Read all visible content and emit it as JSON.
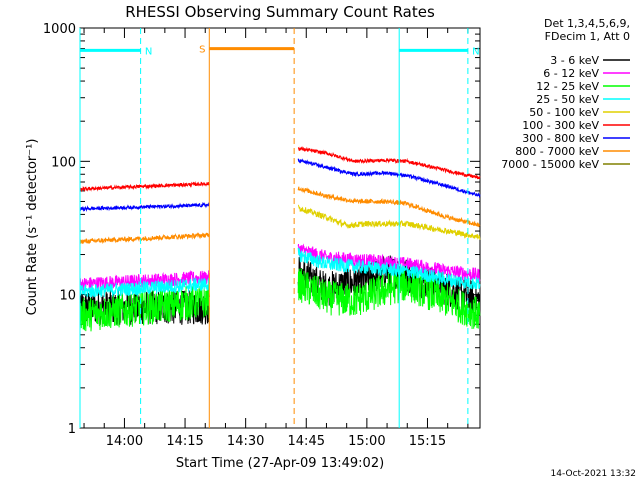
{
  "chart_data": {
    "type": "line",
    "title": "RHESSI Observing Summary Count Rates",
    "xlabel": "Start Time (27-Apr-09 13:49:02)",
    "ylabel": "Count Rate (s⁻¹ detector⁻¹)",
    "yscale": "log",
    "ylim": [
      1,
      1000
    ],
    "xlim": [
      "13:49",
      "15:28"
    ],
    "x_ticks": [
      "14:00",
      "14:15",
      "14:30",
      "14:45",
      "15:00",
      "15:15"
    ],
    "y_ticks": [
      "1",
      "10",
      "100",
      "1000"
    ],
    "legend_position": "right",
    "legend_header": [
      "Det 1,3,4,5,6,9,",
      "FDecim 1, Att 0"
    ],
    "timestamp": "14-Oct-2021 13:32",
    "gaps": [
      [
        "14:21",
        "14:43"
      ]
    ],
    "series": [
      {
        "name": "3 - 6 keV",
        "color": "#000000",
        "mean": 8,
        "noise": 0.3,
        "before": [
          [
            "13:49",
            8
          ],
          [
            "14:21",
            8
          ]
        ],
        "after": [
          [
            "14:43",
            15
          ],
          [
            "14:50",
            11
          ],
          [
            "15:00",
            13
          ],
          [
            "15:05",
            15
          ],
          [
            "15:10",
            14
          ],
          [
            "15:20",
            11
          ],
          [
            "15:28",
            9
          ]
        ]
      },
      {
        "name": "6 - 12 keV",
        "color": "#ff00ff",
        "mean": 12,
        "noise": 0.12,
        "before": [
          [
            "13:49",
            12
          ],
          [
            "14:21",
            13.5
          ]
        ],
        "after": [
          [
            "14:43",
            22
          ],
          [
            "14:50",
            19
          ],
          [
            "15:00",
            18
          ],
          [
            "15:10",
            17
          ],
          [
            "15:20",
            15
          ],
          [
            "15:28",
            14
          ]
        ]
      },
      {
        "name": "12 - 25 keV",
        "color": "#00ff00",
        "mean": 7,
        "noise": 0.3,
        "before": [
          [
            "13:49",
            7
          ],
          [
            "14:21",
            9
          ]
        ],
        "after": [
          [
            "14:43",
            12
          ],
          [
            "14:50",
            9.5
          ],
          [
            "14:57",
            9
          ],
          [
            "15:05",
            11
          ],
          [
            "15:10",
            12
          ],
          [
            "15:20",
            9
          ],
          [
            "15:28",
            7
          ]
        ]
      },
      {
        "name": "25 - 50 keV",
        "color": "#00ffff",
        "mean": 11,
        "noise": 0.12,
        "before": [
          [
            "13:49",
            10.5
          ],
          [
            "14:21",
            12
          ]
        ],
        "after": [
          [
            "14:43",
            20
          ],
          [
            "14:50",
            17
          ],
          [
            "15:00",
            16
          ],
          [
            "15:10",
            15
          ],
          [
            "15:20",
            13
          ],
          [
            "15:28",
            12
          ]
        ]
      },
      {
        "name": "50 - 100 keV",
        "color": "#e0d000",
        "mean": 33,
        "noise": 0.05,
        "before": [],
        "after": [
          [
            "14:43",
            45
          ],
          [
            "14:50",
            38
          ],
          [
            "14:55",
            33
          ],
          [
            "15:00",
            34
          ],
          [
            "15:10",
            34
          ],
          [
            "15:20",
            30
          ],
          [
            "15:28",
            27
          ]
        ]
      },
      {
        "name": "100 - 300 keV",
        "color": "#ff0000",
        "mean": 62,
        "noise": 0.03,
        "before": [
          [
            "13:49",
            62
          ],
          [
            "14:21",
            68
          ]
        ],
        "after": [
          [
            "14:43",
            125
          ],
          [
            "14:50",
            115
          ],
          [
            "14:57",
            100
          ],
          [
            "15:05",
            102
          ],
          [
            "15:10",
            100
          ],
          [
            "15:20",
            85
          ],
          [
            "15:28",
            75
          ]
        ]
      },
      {
        "name": "300 - 800 keV",
        "color": "#0000ff",
        "mean": 44,
        "noise": 0.03,
        "before": [
          [
            "13:49",
            44
          ],
          [
            "14:21",
            47
          ]
        ],
        "after": [
          [
            "14:43",
            102
          ],
          [
            "14:50",
            90
          ],
          [
            "14:57",
            80
          ],
          [
            "15:05",
            82
          ],
          [
            "15:10",
            78
          ],
          [
            "15:20",
            65
          ],
          [
            "15:28",
            55
          ]
        ]
      },
      {
        "name": "800 - 7000 keV",
        "color": "#ff8c00",
        "mean": 25,
        "noise": 0.04,
        "before": [
          [
            "13:49",
            25
          ],
          [
            "14:21",
            28
          ]
        ],
        "after": [
          [
            "14:43",
            63
          ],
          [
            "14:50",
            55
          ],
          [
            "14:57",
            50
          ],
          [
            "15:05",
            50
          ],
          [
            "15:10",
            48
          ],
          [
            "15:20",
            38
          ],
          [
            "15:28",
            33
          ]
        ]
      },
      {
        "name": "7000 - 15000 keV",
        "color": "#808000",
        "mean": 1,
        "noise": 0,
        "before": [],
        "after": []
      }
    ],
    "annotations": [
      {
        "label": "N",
        "color": "#00ffff",
        "type": "night",
        "start": "13:49",
        "end": "14:04",
        "level": 680
      },
      {
        "label": "N",
        "color": "#00ffff",
        "type": "night",
        "start": "15:08",
        "end": "15:25",
        "level": 680
      },
      {
        "label": "S",
        "color": "#ff8c00",
        "type": "saa",
        "start": "14:21",
        "end": "14:42",
        "level": 700
      }
    ]
  }
}
